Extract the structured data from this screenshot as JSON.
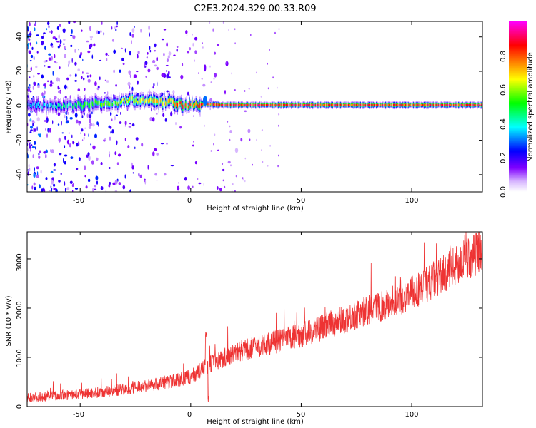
{
  "figure": {
    "title": "C2E3.2024.329.00.33.R09"
  },
  "chart_data": [
    {
      "type": "heatmap",
      "xlabel": "Height of straight line (km)",
      "ylabel": "Frequency (Hz)",
      "xlim": [
        -74,
        132
      ],
      "ylim": [
        -50,
        49
      ],
      "x_ticks": [
        "-50",
        "0",
        "50",
        "100"
      ],
      "y_ticks": [
        "-40",
        "-20",
        "0",
        "20",
        "40"
      ],
      "grid": false,
      "colorbar": {
        "label": "Normalized spectral amplitude",
        "range": [
          0,
          1
        ],
        "ticks": [
          "0.0",
          "0.2",
          "0.4",
          "0.6",
          "0.8"
        ],
        "stops": [
          "#ffffff",
          "#8000ff",
          "#0000ff",
          "#00ffff",
          "#00ff00",
          "#ffff00",
          "#ff8000",
          "#ff0000",
          "#ff00ff"
        ]
      },
      "ridge": [
        {
          "x": -74,
          "f": 0,
          "amp": 0.35
        },
        {
          "x": -60,
          "f": 0,
          "amp": 0.45
        },
        {
          "x": -50,
          "f": 0.5,
          "amp": 0.55
        },
        {
          "x": -40,
          "f": 1.5,
          "amp": 0.6
        },
        {
          "x": -30,
          "f": 3,
          "amp": 0.7
        },
        {
          "x": -20,
          "f": 3.5,
          "amp": 0.75
        },
        {
          "x": -10,
          "f": 2,
          "amp": 0.8
        },
        {
          "x": -4,
          "f": 0.5,
          "amp": 0.9
        },
        {
          "x": 5,
          "f": 1,
          "amp": 0.9
        },
        {
          "x": 15,
          "f": 0.5,
          "amp": 0.95
        },
        {
          "x": 50,
          "f": 0.5,
          "amp": 0.95
        },
        {
          "x": 90,
          "f": 0.5,
          "amp": 0.9
        },
        {
          "x": 132,
          "f": 0.5,
          "amp": 0.95
        }
      ],
      "scatter_region": [
        -74,
        5
      ]
    },
    {
      "type": "line",
      "xlabel": "Height of straight line (km)",
      "ylabel": "SNR (10 * v/v)",
      "xlim": [
        -74,
        132
      ],
      "ylim": [
        0,
        3550
      ],
      "x_ticks": [
        "-50",
        "0",
        "50",
        "100"
      ],
      "y_ticks": [
        "0",
        "1000",
        "2000",
        "3000"
      ],
      "grid": false,
      "color": "#ee3333",
      "trend": [
        {
          "x": -74,
          "y": 180
        },
        {
          "x": -50,
          "y": 250
        },
        {
          "x": -30,
          "y": 350
        },
        {
          "x": -10,
          "y": 500
        },
        {
          "x": 0,
          "y": 600
        },
        {
          "x": 5,
          "y": 750
        },
        {
          "x": 8,
          "y": 850
        },
        {
          "x": 20,
          "y": 1100
        },
        {
          "x": 50,
          "y": 1450
        },
        {
          "x": 80,
          "y": 1950
        },
        {
          "x": 100,
          "y": 2300
        },
        {
          "x": 120,
          "y": 2850
        },
        {
          "x": 132,
          "y": 3200
        }
      ],
      "events": [
        {
          "x": 7,
          "y": 1550
        },
        {
          "x": 8,
          "y": 80
        }
      ]
    }
  ]
}
